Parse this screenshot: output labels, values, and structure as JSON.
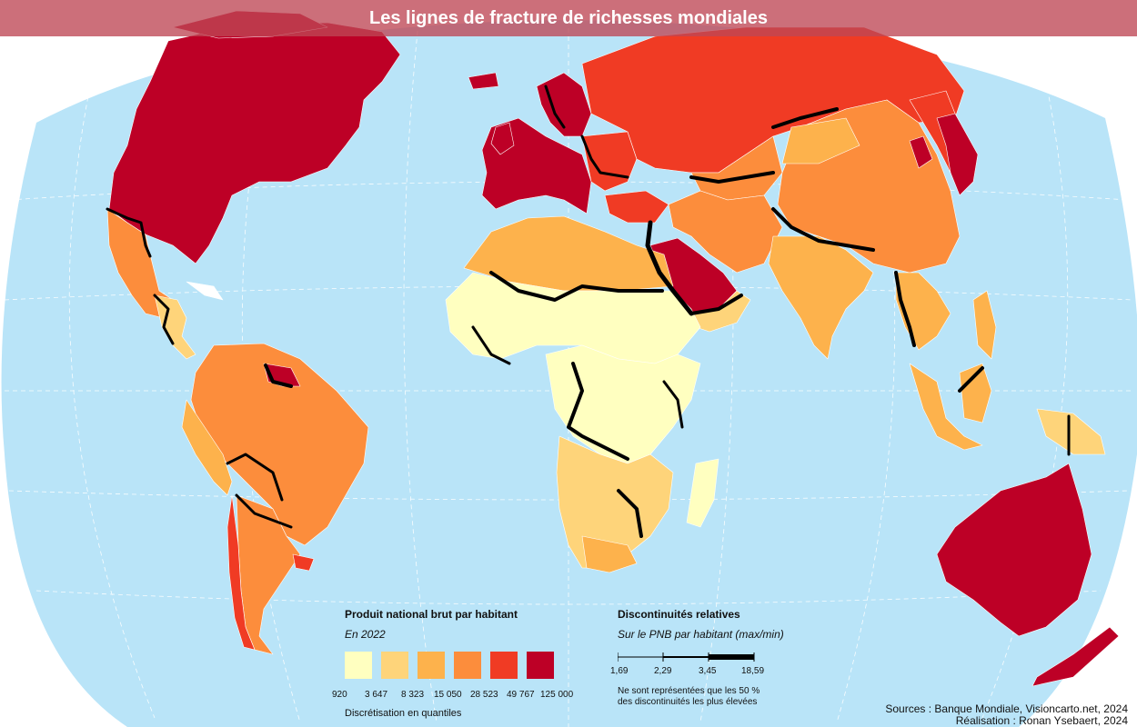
{
  "title": "Les lignes de fracture de richesses mondiales",
  "colors": {
    "ocean": "#b9e4f8",
    "graticule": "#ffffff",
    "border_line": "#000000",
    "title_bar": "#be4655",
    "class1": "#ffffc0",
    "class2": "#fed47a",
    "class3": "#fdb24c",
    "class4": "#fc8d3c",
    "class5": "#f03b24",
    "class6": "#bd0026",
    "no_data": "#ffffff"
  },
  "legend_gni": {
    "title": "Produit national brut par habitant",
    "subtitle": "En 2022",
    "breaks": [
      "920",
      "3 647",
      "8 323",
      "15 050",
      "28 523",
      "49 767",
      "125 000"
    ],
    "method": "Discrétisation en quantiles"
  },
  "legend_disc": {
    "title": "Discontinuités relatives",
    "subtitle": "Sur le PNB par habitant (max/min)",
    "values": [
      "1,69",
      "2,29",
      "3,45",
      "18,59"
    ],
    "note_line1": "Ne sont représentées que les 50 %",
    "note_line2": "des discontinuités les plus élevées"
  },
  "credits": {
    "sources": "Sources : Banque Mondiale, Visioncarto.net, 2024",
    "author": "Réalisation : Ronan Ysebaert, 2024"
  }
}
